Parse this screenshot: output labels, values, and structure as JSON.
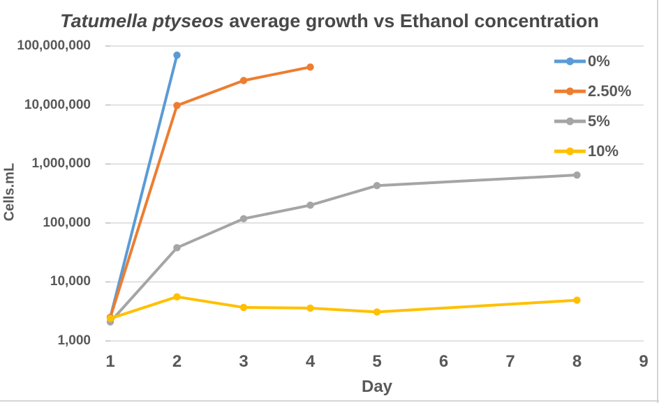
{
  "title": {
    "italic_part": "Tatumella ptyseos",
    "rest_part": " average growth vs Ethanol concentration"
  },
  "axes": {
    "y_title": "Cells.mL",
    "x_title": "Day",
    "y_tick_labels": [
      "100,000,000",
      "10,000,000",
      "1,000,000",
      "100,000",
      "10,000",
      "1,000"
    ],
    "x_tick_labels": [
      "1",
      "2",
      "3",
      "4",
      "5",
      "6",
      "7",
      "8",
      "9"
    ]
  },
  "colors": {
    "series_blue": "#5B9BD5",
    "series_orange": "#ED7D31",
    "series_gray": "#A5A5A5",
    "series_yellow": "#FFC000",
    "gridline": "#D9D9D9",
    "tick_mark": "#BFBFBF",
    "text": "#595959",
    "title_text": "#484848"
  },
  "chart_data": {
    "type": "line",
    "title": "Tatumella ptyseos average growth vs Ethanol concentration",
    "xlabel": "Day",
    "ylabel": "Cells.mL",
    "x_range": [
      1,
      9
    ],
    "y_scale": "log10",
    "ylim": [
      1000,
      100000000
    ],
    "grid": "horizontal-only",
    "legend_position": "top-right",
    "markers": "circle",
    "series": [
      {
        "name": "0%",
        "color": "#5B9BD5",
        "x": [
          1,
          2
        ],
        "y": [
          2500,
          70000000
        ]
      },
      {
        "name": "2.50%",
        "color": "#ED7D31",
        "x": [
          1,
          2,
          3,
          4
        ],
        "y": [
          2500,
          9800000,
          26000000,
          44000000
        ]
      },
      {
        "name": "5%",
        "color": "#A5A5A5",
        "x": [
          1,
          2,
          3,
          4,
          5,
          8
        ],
        "y": [
          2100,
          38000,
          118000,
          200000,
          430000,
          650000
        ]
      },
      {
        "name": "10%",
        "color": "#FFC000",
        "x": [
          1,
          2,
          3,
          4,
          5,
          8
        ],
        "y": [
          2400,
          5600,
          3700,
          3600,
          3100,
          4900
        ]
      }
    ]
  }
}
